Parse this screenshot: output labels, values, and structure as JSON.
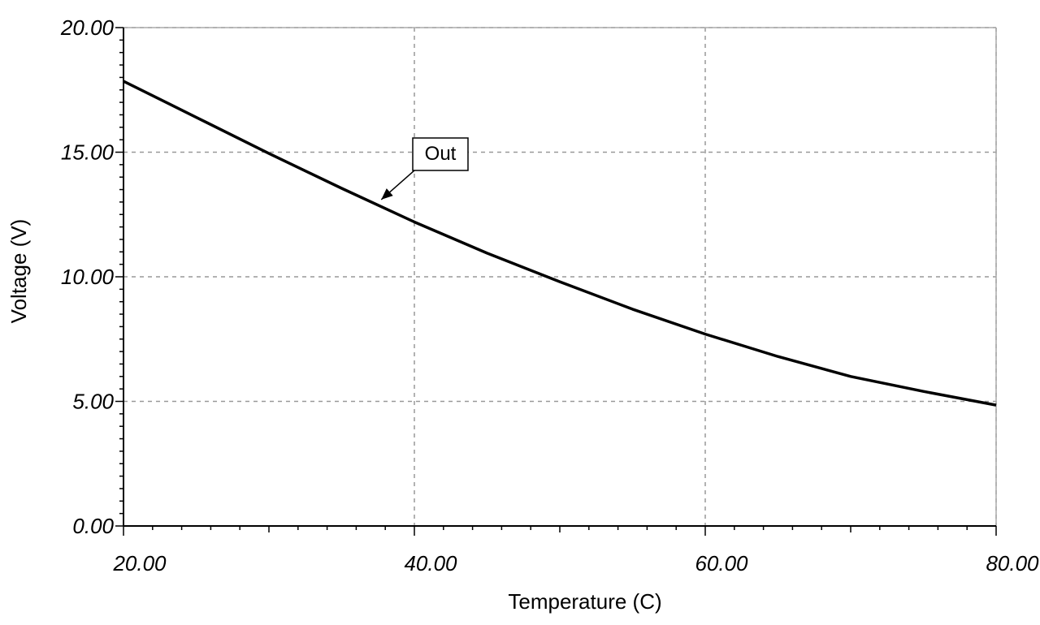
{
  "chart_data": {
    "type": "line",
    "title": "",
    "xlabel": "Temperature (C)",
    "ylabel": "Voltage (V)",
    "xlim": [
      20,
      80
    ],
    "ylim": [
      0,
      20
    ],
    "x_ticks": [
      20,
      40,
      60,
      80
    ],
    "x_tick_labels": [
      "20.00",
      "40.00",
      "60.00",
      "80.00"
    ],
    "y_ticks": [
      0,
      5,
      10,
      15,
      20
    ],
    "y_tick_labels": [
      "0.00",
      "5.00",
      "10.00",
      "15.00",
      "20.00"
    ],
    "grid": true,
    "series": [
      {
        "name": "Out",
        "color": "#000000",
        "x": [
          20,
          25,
          30,
          35,
          40,
          45,
          50,
          55,
          60,
          65,
          70,
          75,
          80
        ],
        "y": [
          17.85,
          16.4,
          14.95,
          13.55,
          12.2,
          10.95,
          9.8,
          8.7,
          7.7,
          6.8,
          6.0,
          5.4,
          4.85
        ]
      }
    ],
    "annotations": [
      {
        "text": "Out",
        "series": "Out",
        "x": 37.5,
        "y": 13.0
      }
    ]
  }
}
